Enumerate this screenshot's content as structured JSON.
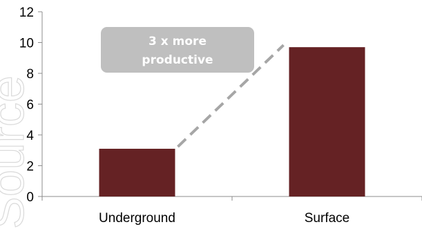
{
  "chart_data": {
    "type": "bar",
    "categories": [
      "Underground",
      "Surface"
    ],
    "values": [
      3.1,
      9.7
    ],
    "ylim": [
      0,
      12
    ],
    "yticks": [
      "0",
      "2",
      "4",
      "6",
      "8",
      "10",
      "12"
    ],
    "grid": false,
    "legend": "none",
    "annotation": {
      "lines": [
        "3 x more",
        "productive"
      ],
      "connector": "dashed line from Underground bar top to Surface bar top"
    },
    "colors": {
      "bar": "#652224",
      "annotation_box": "#bfbfbf",
      "connector": "#a6a6a6",
      "axis": "#8c8c8c"
    }
  },
  "watermark": {
    "text": "Source"
  }
}
